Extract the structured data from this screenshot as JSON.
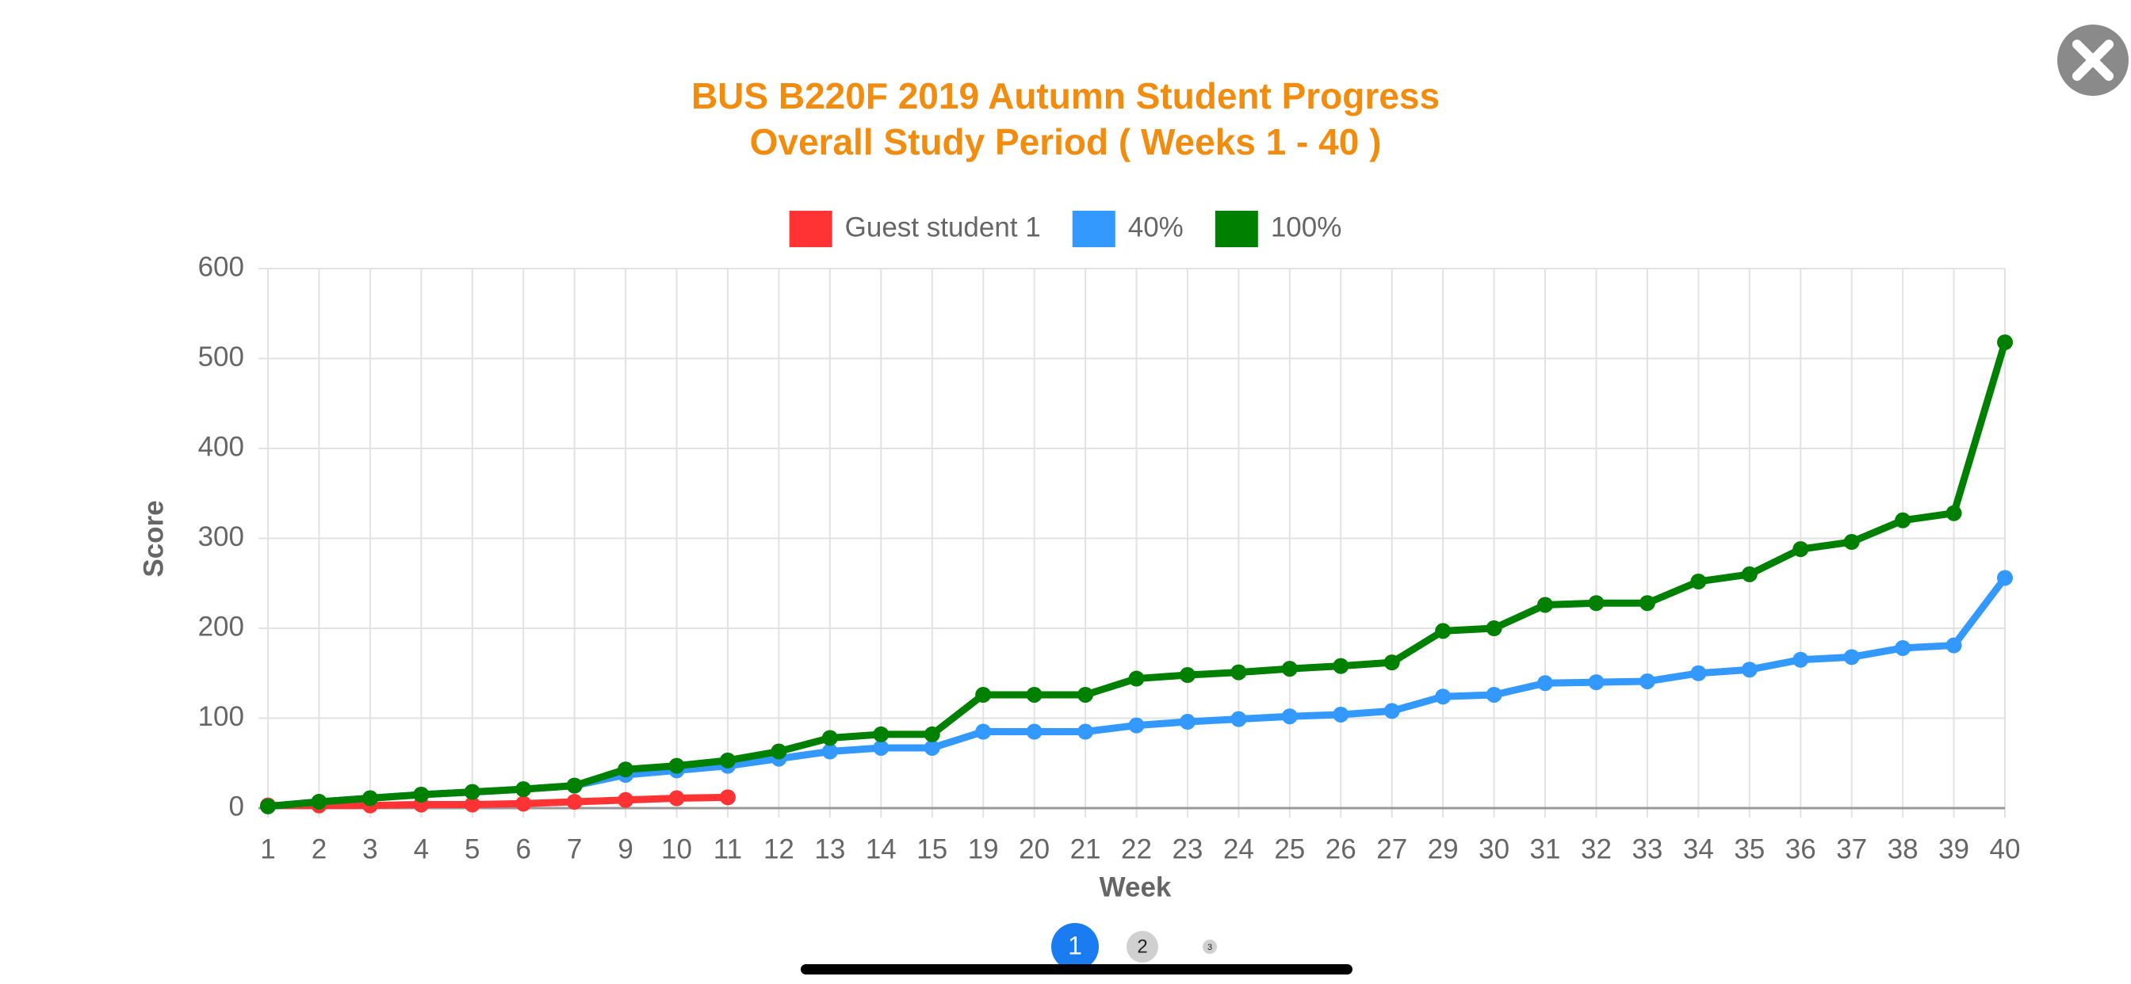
{
  "chart_data": {
    "type": "line",
    "title": [
      "BUS B220F 2019 Autumn Student Progress",
      "Overall Study Period ( Weeks 1 - 40 )"
    ],
    "x_label": "Week",
    "y_label": "Score",
    "categories": [
      "1",
      "2",
      "3",
      "4",
      "5",
      "6",
      "7",
      "9",
      "10",
      "11",
      "12",
      "13",
      "14",
      "15",
      "19",
      "20",
      "21",
      "22",
      "23",
      "24",
      "25",
      "26",
      "27",
      "29",
      "30",
      "31",
      "32",
      "33",
      "34",
      "35",
      "36",
      "37",
      "38",
      "39",
      "40"
    ],
    "series": [
      {
        "name": "Guest student 1",
        "color": "#ff3333",
        "values": [
          3,
          3,
          3,
          4,
          4,
          5,
          7,
          9,
          11,
          12,
          null,
          null,
          null,
          null,
          null,
          null,
          null,
          null,
          null,
          null,
          null,
          null,
          null,
          null,
          null,
          null,
          null,
          null,
          null,
          null,
          null,
          null,
          null,
          null,
          null
        ]
      },
      {
        "name": "40%",
        "color": "#3399ff",
        "values": [
          2,
          7,
          11,
          15,
          18,
          21,
          25,
          37,
          42,
          47,
          55,
          63,
          67,
          67,
          85,
          85,
          85,
          92,
          96,
          99,
          102,
          104,
          108,
          124,
          126,
          139,
          140,
          141,
          150,
          154,
          165,
          168,
          178,
          181,
          256
        ]
      },
      {
        "name": "100%",
        "color": "#008000",
        "values": [
          2,
          7,
          11,
          15,
          18,
          21,
          25,
          43,
          47,
          53,
          63,
          78,
          82,
          82,
          126,
          126,
          126,
          144,
          148,
          151,
          155,
          158,
          162,
          197,
          200,
          226,
          228,
          228,
          252,
          260,
          288,
          296,
          320,
          328,
          518
        ]
      }
    ],
    "ylim": [
      0,
      600
    ],
    "yticks": [
      0,
      100,
      200,
      300,
      400,
      500,
      600
    ],
    "grid": true,
    "legend": "top"
  },
  "pagination": [
    "1",
    "2",
    "3"
  ]
}
